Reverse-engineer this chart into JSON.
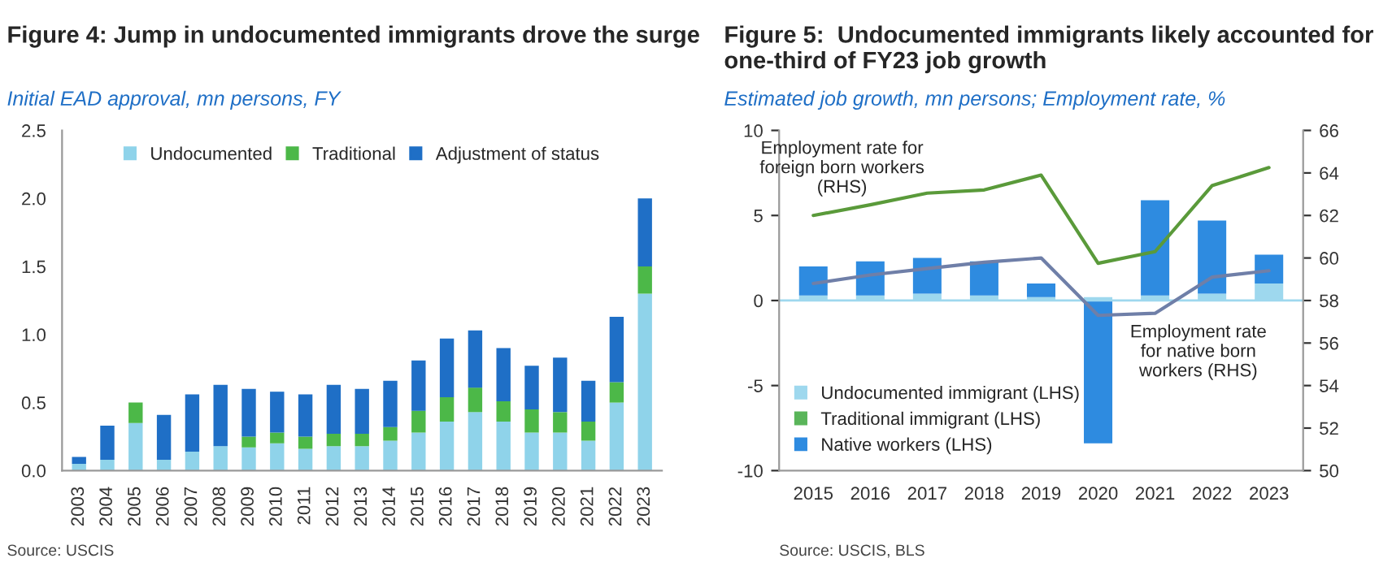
{
  "chart_data": [
    {
      "type": "bar",
      "title": "Figure 4: Jump in undocumented immigrants drove the surge",
      "subtitle": "Initial EAD approval, mn persons, FY",
      "stacked": true,
      "legend": "top",
      "grid": false,
      "categories": [
        "2003",
        "2004",
        "2005",
        "2006",
        "2007",
        "2008",
        "2009",
        "2010",
        "2011",
        "2012",
        "2013",
        "2014",
        "2015",
        "2016",
        "2017",
        "2018",
        "2019",
        "2020",
        "2021",
        "2022",
        "2023"
      ],
      "series": [
        {
          "name": "Undocumented",
          "color": "#8fd3ea",
          "values": [
            0.05,
            0.08,
            0.35,
            0.08,
            0.14,
            0.18,
            0.17,
            0.2,
            0.16,
            0.18,
            0.18,
            0.22,
            0.28,
            0.36,
            0.43,
            0.36,
            0.28,
            0.28,
            0.22,
            0.5,
            1.3
          ]
        },
        {
          "name": "Traditional",
          "color": "#4cb848",
          "values": [
            0,
            0,
            0.15,
            0,
            0,
            0,
            0.08,
            0.08,
            0.09,
            0.09,
            0.09,
            0.1,
            0.16,
            0.18,
            0.18,
            0.15,
            0.17,
            0.15,
            0.14,
            0.15,
            0.2
          ]
        },
        {
          "name": "Adjustment of status",
          "color": "#1f6fc6",
          "values": [
            0.05,
            0.25,
            0,
            0.33,
            0.42,
            0.45,
            0.35,
            0.3,
            0.31,
            0.36,
            0.33,
            0.34,
            0.37,
            0.43,
            0.42,
            0.39,
            0.32,
            0.4,
            0.3,
            0.48,
            0.5
          ]
        }
      ],
      "ylim": [
        0,
        2.5
      ],
      "yticks": [
        {
          "value": 0,
          "label": "0.0"
        },
        {
          "value": 0.5,
          "label": "0.5"
        },
        {
          "value": 1,
          "label": "1.0"
        },
        {
          "value": 1.5,
          "label": "1.5"
        },
        {
          "value": 2,
          "label": "2.0"
        },
        {
          "value": 2.5,
          "label": "2.5"
        }
      ],
      "annotations": [
        "Source: USCIS"
      ]
    },
    {
      "type": "bar",
      "title": "Figure 5:  Undocumented immigrants likely accounted for one-third of FY23 job growth",
      "subtitle": "Estimated job growth, mn persons; Employment rate, %",
      "stacked": true,
      "legend": "bottom left",
      "grid": false,
      "categories": [
        "2015",
        "2016",
        "2017",
        "2018",
        "2019",
        "2020",
        "2021",
        "2022",
        "2023"
      ],
      "series": [
        {
          "name": "Undocumented immigrant (LHS)",
          "color": "#9ed8ee",
          "values": [
            0.3,
            0.3,
            0.4,
            0.3,
            0.2,
            0.2,
            0.3,
            0.4,
            1.0
          ]
        },
        {
          "name": "Traditional immigrant (LHS)",
          "color": "#5ab55a",
          "values": [
            0,
            0,
            0,
            0,
            0,
            0,
            0,
            0,
            0
          ]
        },
        {
          "name": "Native workers (LHS)",
          "color": "#2e8be0",
          "values": [
            1.7,
            2.0,
            2.1,
            2.0,
            0.8,
            -8.4,
            5.6,
            4.3,
            1.7
          ]
        },
        {
          "type": "line",
          "axis": "y2",
          "color": "#5a9a3a",
          "values": [
            62.0,
            62.5,
            63.05,
            63.2,
            63.9,
            59.75,
            60.3,
            63.4,
            64.25
          ]
        },
        {
          "type": "line",
          "axis": "y2",
          "color": "#6f7fa8",
          "values": [
            58.8,
            59.2,
            59.5,
            59.8,
            60.0,
            57.3,
            57.4,
            59.1,
            59.4
          ]
        }
      ],
      "ylim": [
        -10,
        10
      ],
      "yticks": [
        -10,
        -5,
        0,
        5,
        10
      ],
      "ref_lines": [
        {
          "axis": "y",
          "value": 0,
          "color": "#9ed8ee"
        }
      ],
      "y2lim": [
        50,
        66
      ],
      "y2ticks": [
        50,
        52,
        54,
        56,
        58,
        60,
        62,
        64,
        66
      ],
      "annotations": [
        "Employment rate for\nforeign born workers\n(RHS)",
        "Employment rate\nfor native born\nworkers (RHS)",
        "Source: USCIS, BLS"
      ]
    }
  ]
}
